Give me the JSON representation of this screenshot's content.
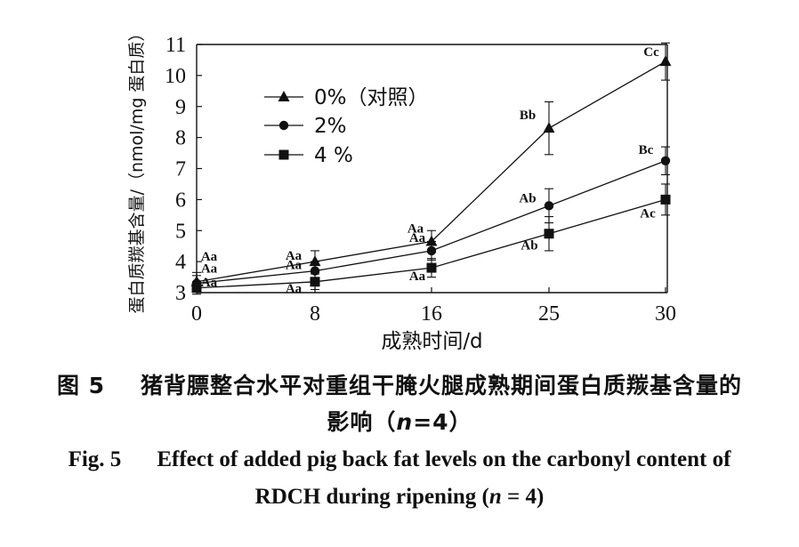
{
  "chart_data": {
    "type": "line",
    "xlabel": "成熟时间/d",
    "ylabel": "蛋白质羰基含量/（nmol/mg 蛋白质）",
    "x_ticks": [
      "0",
      "8",
      "16",
      "25",
      "30"
    ],
    "y_ticks": [
      "3",
      "4",
      "5",
      "6",
      "7",
      "8",
      "9",
      "10",
      "11"
    ],
    "ylim": [
      3,
      11
    ],
    "legend_position": "top-left",
    "series": [
      {
        "name": "0%（对照）",
        "marker": "triangle",
        "color": "#111111",
        "values": [
          3.35,
          4.0,
          4.65,
          8.3,
          10.45
        ],
        "errors": [
          0.3,
          0.35,
          0.35,
          0.85,
          0.6
        ],
        "labels": [
          "Aa",
          "Aa",
          "Aa",
          "Bb",
          "Cc"
        ]
      },
      {
        "name": "2%",
        "marker": "circle",
        "color": "#111111",
        "values": [
          3.3,
          3.7,
          4.35,
          5.8,
          7.25
        ],
        "errors": [
          0.25,
          0.3,
          0.3,
          0.55,
          0.45
        ],
        "labels": [
          "Aa",
          "Aa",
          "Aa",
          "Ab",
          "Bc"
        ]
      },
      {
        "name": "4 %",
        "marker": "square",
        "color": "#111111",
        "values": [
          3.15,
          3.35,
          3.8,
          4.9,
          6.0
        ],
        "errors": [
          0.2,
          0.25,
          0.3,
          0.55,
          0.5
        ],
        "labels": [
          "Aa",
          "Aa",
          "Aa",
          "Ab",
          "Ac"
        ]
      }
    ]
  },
  "caption": {
    "cn_number": "图 5",
    "cn_title_line1": "猪背膘整合水平对重组干腌火腿成熟期间蛋白质羰基含量的",
    "cn_title_line2_prefix": "影响（",
    "cn_title_n": "n",
    "cn_title_line2_suffix": "=4）",
    "en_number": "Fig. 5",
    "en_title_line1": "Effect of added pig back fat levels on the carbonyl content of",
    "en_title_line2_prefix": "RDCH during ripening (",
    "en_title_n": "n",
    "en_title_line2_suffix": " = 4)"
  }
}
